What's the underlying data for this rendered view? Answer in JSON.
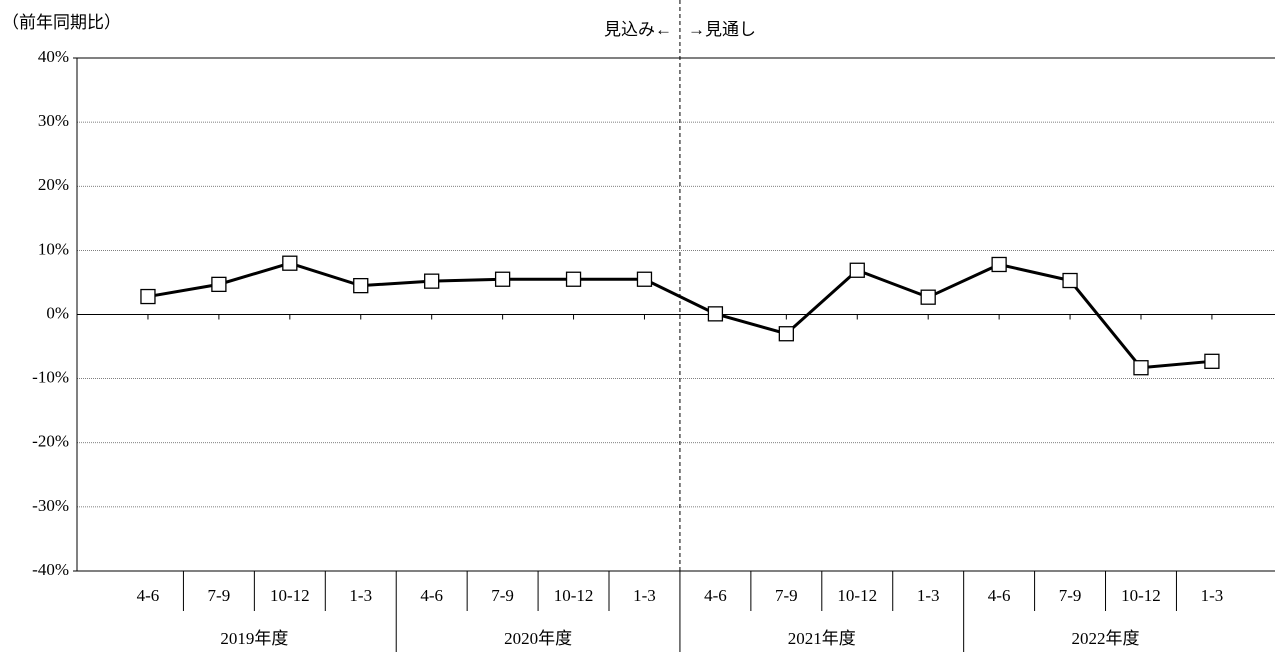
{
  "chart_data": {
    "type": "line",
    "y_label": "（前年同期比）",
    "annotations": [
      "見込み←",
      "→見通し"
    ],
    "categories": [
      "4-6",
      "7-9",
      "10-12",
      "1-3",
      "4-6",
      "7-9",
      "10-12",
      "1-3",
      "4-6",
      "7-9",
      "10-12",
      "1-3",
      "4-6",
      "7-9",
      "10-12",
      "1-3"
    ],
    "category_groups": [
      "2019年度",
      "2020年度",
      "2021年度",
      "2022年度"
    ],
    "series": [
      {
        "color": "#000000",
        "values": [
          2.8,
          4.7,
          8.0,
          4.5,
          5.2,
          5.5,
          5.5,
          5.5,
          0.1,
          -3.0,
          6.9,
          2.7,
          7.8,
          5.3,
          -8.3,
          -7.3
        ]
      }
    ],
    "ylim": [
      -40,
      40
    ],
    "yticks": [
      {
        "value": -40,
        "label": "-40%"
      },
      {
        "value": -30,
        "label": "-30%"
      },
      {
        "value": -20,
        "label": "-20%"
      },
      {
        "value": -10,
        "label": "-10%"
      },
      {
        "value": 0,
        "label": "0%"
      },
      {
        "value": 10,
        "label": "10%"
      },
      {
        "value": 20,
        "label": "20%"
      },
      {
        "value": 30,
        "label": "30%"
      },
      {
        "value": 40,
        "label": "40%"
      }
    ],
    "grid": true
  }
}
